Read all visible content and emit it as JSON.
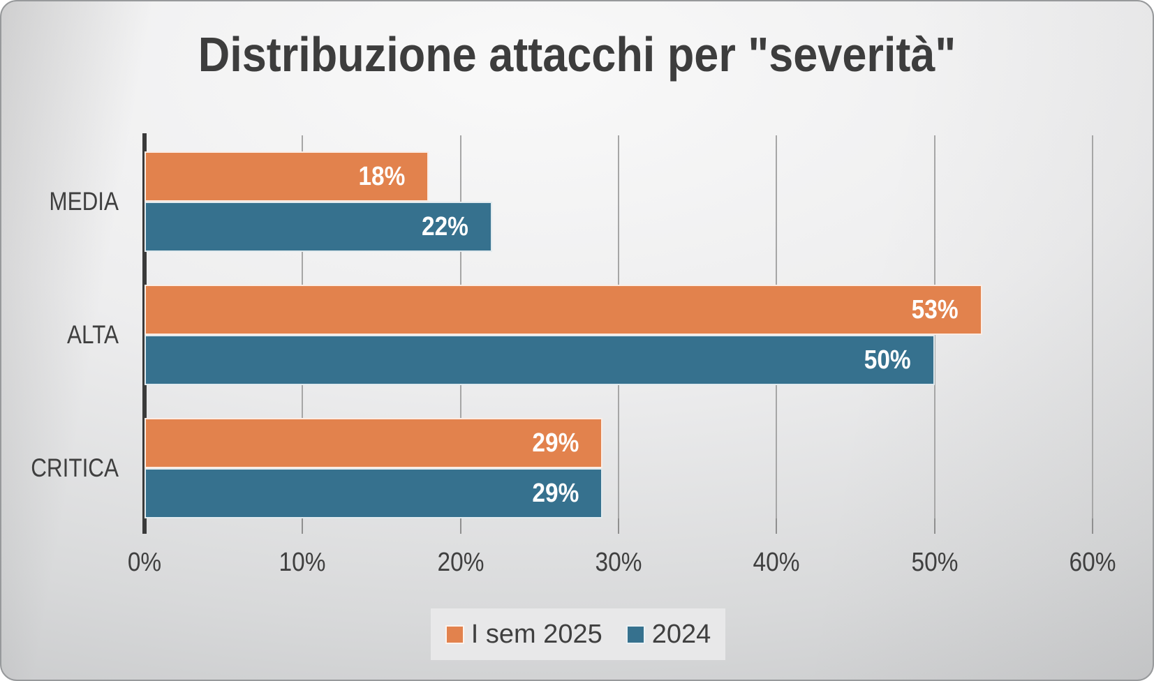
{
  "title": "Distribuzione attacchi per \"severità\"",
  "chart_data": {
    "type": "bar",
    "orientation": "horizontal",
    "title": "Distribuzione attacchi per \"severità\"",
    "categories": [
      "MEDIA",
      "ALTA",
      "CRITICA"
    ],
    "series": [
      {
        "name": "I sem 2025",
        "color": "#E2824D",
        "values": [
          18,
          53,
          29
        ]
      },
      {
        "name": "2024",
        "color": "#36718E",
        "values": [
          22,
          50,
          29
        ]
      }
    ],
    "data_labels": [
      "18%",
      "22%",
      "53%",
      "50%",
      "29%",
      "29%"
    ],
    "data_label_position": "inside-end",
    "x_axis": {
      "min": 0,
      "max": 60,
      "tick_step": 10,
      "tick_labels": [
        "0%",
        "10%",
        "20%",
        "30%",
        "40%",
        "50%",
        "60%"
      ]
    },
    "grid": true,
    "legend_position": "bottom"
  },
  "colors": {
    "text": "#3f3f3f",
    "gridline": "#a6a6a6",
    "axis_line": "#3a3a3a",
    "data_label_text": "#ffffff",
    "legend_background": "#e8e8e9",
    "series_1": "#E2824D",
    "series_2": "#36718E"
  }
}
